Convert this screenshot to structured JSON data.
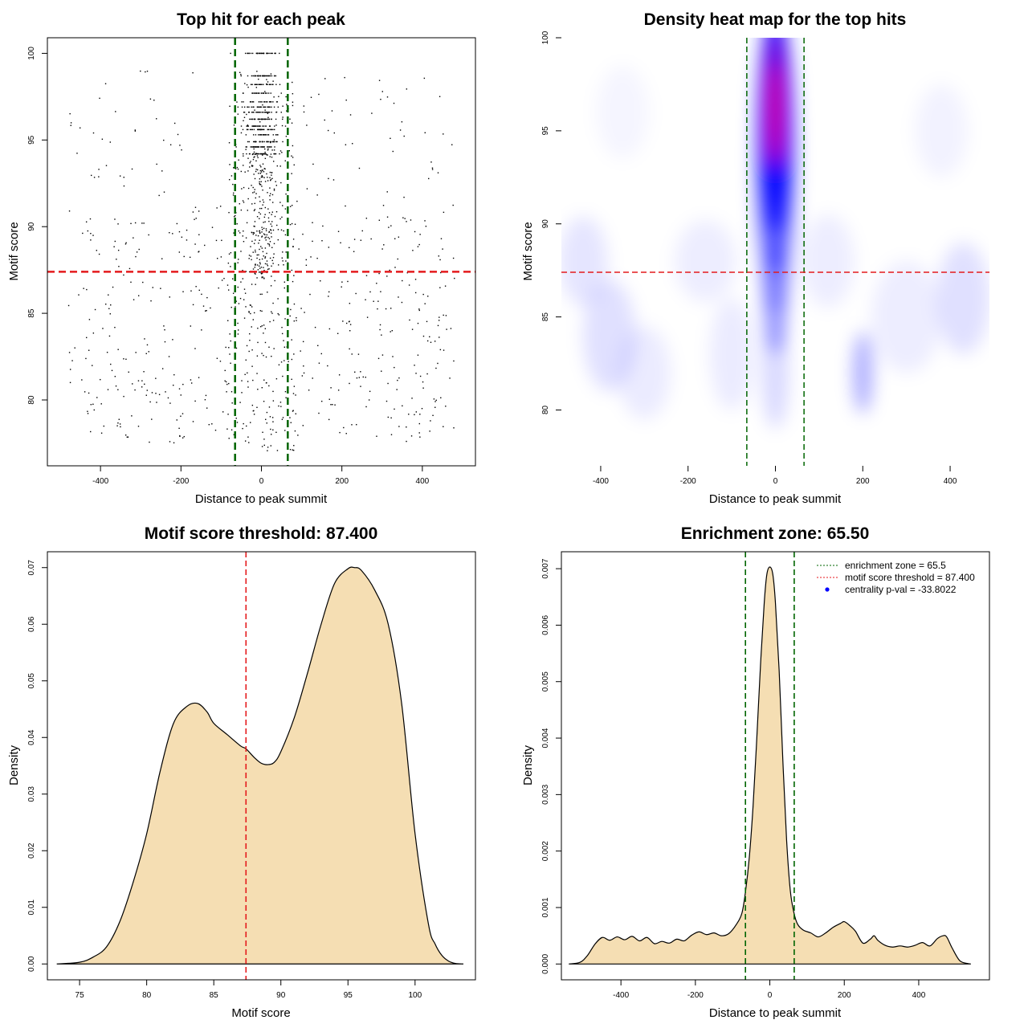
{
  "colors": {
    "green_line": "#006400",
    "red_line": "#e41a1c",
    "density_fill": "#f5deb3",
    "point": "#000000",
    "heat_low": "#ffffff",
    "heat_mid": "#0000ff",
    "heat_high": "#ff0000"
  },
  "chart_data": [
    {
      "type": "scatter",
      "title": "Top hit for each peak",
      "xlabel": "Distance to peak summit",
      "ylabel": "Motif score",
      "xlim": [
        -532,
        532
      ],
      "ylim": [
        76.2,
        100.9
      ],
      "xticks": [
        -400,
        -200,
        0,
        200,
        400
      ],
      "yticks": [
        80,
        85,
        90,
        95,
        100
      ],
      "vlines": [
        -65.5,
        65.5
      ],
      "hline": 87.4,
      "n_points": 1500,
      "peak_score_levels": [
        100.0,
        98.7,
        98.2,
        97.7,
        97.2,
        96.9,
        96.6,
        96.2,
        95.8,
        95.6,
        95.3,
        94.9,
        94.6,
        94.2
      ]
    },
    {
      "type": "heatmap",
      "title": "Density heat map for the top hits",
      "xlabel": "Distance to peak summit",
      "ylabel": "Motif score",
      "xlim": [
        -490,
        490
      ],
      "ylim": [
        77,
        100
      ],
      "xticks": [
        -400,
        -200,
        0,
        200,
        400
      ],
      "yticks": [
        80,
        85,
        90,
        95,
        100
      ],
      "vlines": [
        -65.5,
        65.5
      ],
      "hline": 87.4,
      "hotspot": {
        "x": 0,
        "y": 96
      },
      "secondary_hotspot": {
        "x": 200,
        "y": 82
      }
    },
    {
      "type": "area",
      "title": "Motif score threshold: 87.400",
      "xlabel": "Motif score",
      "ylabel": "Density",
      "xlim": [
        72.6,
        104.5
      ],
      "ylim": [
        -0.0028,
        0.0728
      ],
      "xticks": [
        75,
        80,
        85,
        90,
        95,
        100
      ],
      "yticks": [
        0.0,
        0.01,
        0.02,
        0.03,
        0.04,
        0.05,
        0.06,
        0.07
      ],
      "ytick_labels": [
        "0.00",
        "0.01",
        "0.02",
        "0.03",
        "0.04",
        "0.05",
        "0.06",
        "0.07"
      ],
      "vline": 87.4,
      "x": [
        73.3,
        75,
        76,
        77,
        78,
        79,
        80,
        81,
        82,
        83,
        83.8,
        84.5,
        85,
        86,
        87,
        87.4,
        88,
        88.5,
        89,
        89.5,
        90,
        91,
        92,
        93,
        94,
        95,
        95.5,
        96,
        97,
        98,
        99,
        100,
        101,
        101.5,
        102,
        102.5,
        103,
        103.6
      ],
      "y": [
        0.0,
        0.0003,
        0.0012,
        0.003,
        0.0075,
        0.0145,
        0.023,
        0.034,
        0.0425,
        0.0455,
        0.046,
        0.0445,
        0.0425,
        0.0405,
        0.0385,
        0.038,
        0.0365,
        0.0355,
        0.0352,
        0.0356,
        0.0375,
        0.0435,
        0.0515,
        0.06,
        0.0672,
        0.0698,
        0.07,
        0.0695,
        0.066,
        0.06,
        0.046,
        0.023,
        0.007,
        0.0035,
        0.0015,
        0.0005,
        0.0001,
        0.0
      ]
    },
    {
      "type": "area",
      "title": "Enrichment zone: 65.50",
      "xlabel": "Distance to peak summit",
      "ylabel": "Density",
      "xlim": [
        -560,
        590
      ],
      "ylim": [
        -0.00028,
        0.0073
      ],
      "xticks": [
        -400,
        -200,
        0,
        200,
        400
      ],
      "yticks": [
        0.0,
        0.001,
        0.002,
        0.003,
        0.004,
        0.005,
        0.006,
        0.007
      ],
      "ytick_labels": [
        "0.000",
        "0.001",
        "0.002",
        "0.003",
        "0.004",
        "0.005",
        "0.006",
        "0.007"
      ],
      "vlines": [
        -65.5,
        65.5
      ],
      "legend_position": "top-right",
      "legend": [
        {
          "label": "enrichment zone = 65.5",
          "style": "green-dotted-line"
        },
        {
          "label": "motif score threshold = 87.400",
          "style": "red-dotted-line"
        },
        {
          "label": "centrality p-val = -33.8022",
          "style": "blue-point"
        }
      ],
      "x": [
        -540,
        -510,
        -490,
        -470,
        -450,
        -430,
        -410,
        -390,
        -370,
        -350,
        -330,
        -310,
        -290,
        -270,
        -250,
        -230,
        -210,
        -190,
        -170,
        -150,
        -130,
        -110,
        -90,
        -75,
        -65,
        -55,
        -45,
        -35,
        -25,
        -15,
        -8,
        0,
        8,
        15,
        25,
        35,
        45,
        55,
        65,
        75,
        90,
        110,
        130,
        150,
        170,
        190,
        200,
        215,
        230,
        250,
        270,
        280,
        290,
        310,
        330,
        350,
        370,
        390,
        410,
        430,
        450,
        465,
        475,
        490,
        510,
        530,
        540
      ],
      "y": [
        0.0,
        3e-05,
        0.00015,
        0.00035,
        0.00047,
        0.00042,
        0.00048,
        0.00043,
        0.00049,
        0.00041,
        0.00047,
        0.00036,
        0.0004,
        0.00037,
        0.00044,
        0.00041,
        0.00051,
        0.00057,
        0.00052,
        0.00055,
        0.0005,
        0.00054,
        0.0007,
        0.0009,
        0.0013,
        0.0019,
        0.0028,
        0.004,
        0.0053,
        0.0064,
        0.0069,
        0.00703,
        0.0069,
        0.0064,
        0.0052,
        0.0036,
        0.0022,
        0.0013,
        0.0009,
        0.0007,
        0.0006,
        0.00055,
        0.00048,
        0.00055,
        0.00065,
        0.00072,
        0.00075,
        0.00068,
        0.00058,
        0.00037,
        0.00044,
        0.0005,
        0.00042,
        0.00033,
        0.0003,
        0.00032,
        0.0003,
        0.00033,
        0.00038,
        0.00032,
        0.00045,
        0.0005,
        0.00048,
        0.00028,
        6e-05,
        1e-05,
        0.0
      ]
    }
  ]
}
